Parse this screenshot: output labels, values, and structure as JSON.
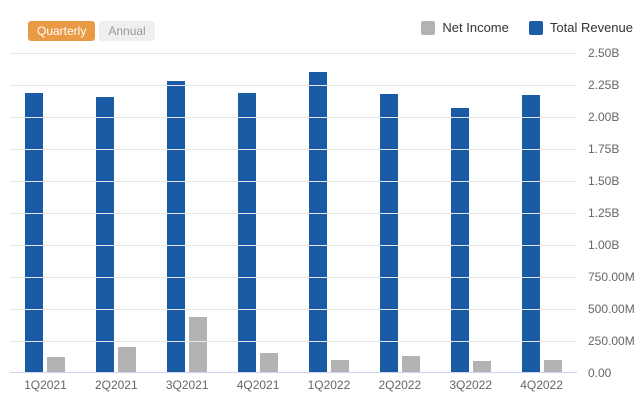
{
  "controls": {
    "quarterly_label": "Quarterly",
    "annual_label": "Annual",
    "active_bg": "#ea9a44",
    "active_text": "#ffffff",
    "inactive_bg": "#efefef",
    "inactive_text": "#999999",
    "selected": "Quarterly"
  },
  "legend": {
    "position": "top-right",
    "items": [
      {
        "label": "Net Income",
        "color": "#b3b3b3"
      },
      {
        "label": "Total Revenue",
        "color": "#1a5ba6"
      }
    ]
  },
  "chart_data": {
    "type": "bar",
    "title": "",
    "categories": [
      "1Q2021",
      "2Q2021",
      "3Q2021",
      "4Q2021",
      "1Q2022",
      "2Q2022",
      "3Q2022",
      "4Q2022"
    ],
    "series": [
      {
        "name": "Net Income",
        "color": "#b3b3b3",
        "values": [
          125,
          200,
          440,
          160,
          105,
          135,
          95,
          100
        ]
      },
      {
        "name": "Total Revenue",
        "color": "#1a5ba6",
        "values": [
          2190,
          2160,
          2280,
          2190,
          2350,
          2180,
          2070,
          2170
        ]
      }
    ],
    "values_unit": "millions",
    "bar_order_in_group": [
      "Total Revenue",
      "Net Income"
    ],
    "y_axis": {
      "side": "right",
      "min": 0,
      "max": 2500,
      "tick_interval": 250,
      "tick_labels": [
        "0.00",
        "250.00M",
        "500.00M",
        "750.00M",
        "1.00B",
        "1.25B",
        "1.50B",
        "1.75B",
        "2.00B",
        "2.25B",
        "2.50B"
      ],
      "label_color": "#666666"
    },
    "grid": true,
    "gridline_color": "#e6e6e6",
    "axis_line_color": "#ccd6eb",
    "legend_position": "top-right"
  }
}
